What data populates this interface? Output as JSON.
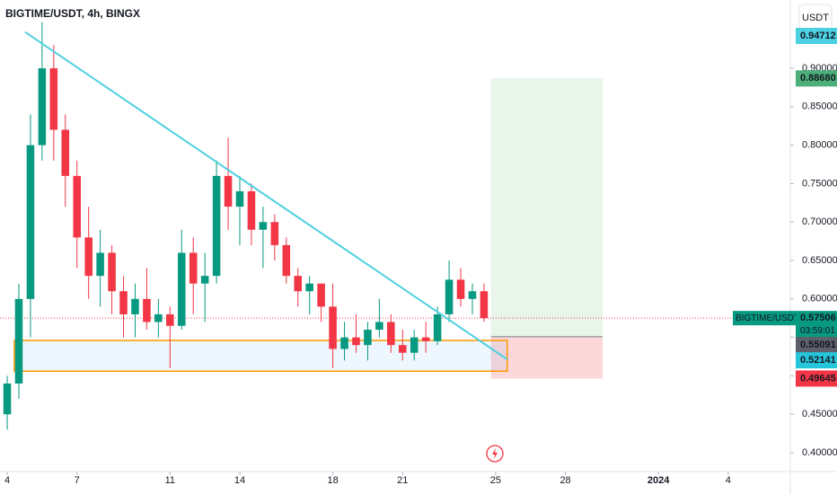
{
  "chart_data": {
    "type": "candlestick",
    "title": "BIGTIME/USDT, 4h, BINGX",
    "currency_button": "USDT",
    "up_color": "#089981",
    "down_color": "#f23645",
    "x": [
      0,
      0.5,
      1,
      1.5,
      2,
      2.5,
      3,
      3.5,
      4,
      4.5,
      5,
      5.5,
      6,
      6.5,
      7,
      7.5,
      8,
      8.5,
      9,
      9.5,
      10,
      10.5,
      11,
      11.5,
      12,
      12.5,
      13,
      13.5,
      14,
      14.5,
      15,
      15.5,
      16,
      16.5,
      17,
      17.5,
      18,
      18.5,
      19,
      19.5,
      20,
      20.5
    ],
    "open": [
      0.45,
      0.49,
      0.6,
      0.8,
      0.9,
      0.82,
      0.76,
      0.68,
      0.63,
      0.66,
      0.61,
      0.58,
      0.6,
      0.57,
      0.58,
      0.565,
      0.66,
      0.62,
      0.63,
      0.76,
      0.72,
      0.74,
      0.69,
      0.7,
      0.67,
      0.63,
      0.61,
      0.62,
      0.59,
      0.535,
      0.55,
      0.54,
      0.56,
      0.57,
      0.54,
      0.53,
      0.55,
      0.545,
      0.58,
      0.625,
      0.6,
      0.61
    ],
    "high": [
      0.5,
      0.62,
      0.84,
      0.96,
      0.93,
      0.84,
      0.78,
      0.72,
      0.69,
      0.67,
      0.63,
      0.62,
      0.64,
      0.6,
      0.59,
      0.69,
      0.68,
      0.66,
      0.78,
      0.81,
      0.76,
      0.75,
      0.72,
      0.71,
      0.68,
      0.64,
      0.63,
      0.62,
      0.62,
      0.57,
      0.58,
      0.57,
      0.6,
      0.58,
      0.56,
      0.56,
      0.57,
      0.59,
      0.65,
      0.64,
      0.62,
      0.62
    ],
    "low": [
      0.43,
      0.47,
      0.55,
      0.78,
      0.78,
      0.72,
      0.64,
      0.6,
      0.59,
      0.58,
      0.55,
      0.55,
      0.56,
      0.55,
      0.51,
      0.56,
      0.58,
      0.57,
      0.62,
      0.69,
      0.67,
      0.67,
      0.64,
      0.65,
      0.62,
      0.59,
      0.58,
      0.57,
      0.51,
      0.52,
      0.53,
      0.52,
      0.55,
      0.53,
      0.52,
      0.52,
      0.53,
      0.54,
      0.57,
      0.59,
      0.58,
      0.57
    ],
    "close": [
      0.49,
      0.6,
      0.8,
      0.9,
      0.82,
      0.76,
      0.68,
      0.63,
      0.66,
      0.61,
      0.58,
      0.6,
      0.57,
      0.58,
      0.565,
      0.66,
      0.62,
      0.63,
      0.76,
      0.72,
      0.74,
      0.69,
      0.7,
      0.67,
      0.63,
      0.61,
      0.62,
      0.59,
      0.535,
      0.55,
      0.54,
      0.56,
      0.57,
      0.54,
      0.53,
      0.55,
      0.545,
      0.58,
      0.625,
      0.6,
      0.61,
      0.575
    ],
    "xlim": [
      -0.31,
      33.67
    ],
    "ylim": [
      0.3755,
      0.9888
    ],
    "xticks": [
      {
        "value": 0,
        "label": "4"
      },
      {
        "value": 3,
        "label": "7"
      },
      {
        "value": 7,
        "label": "11"
      },
      {
        "value": 10,
        "label": "14"
      },
      {
        "value": 14,
        "label": "18"
      },
      {
        "value": 17,
        "label": "21"
      },
      {
        "value": 21,
        "label": "25"
      },
      {
        "value": 24,
        "label": "28"
      },
      {
        "value": 28,
        "label": "2024"
      },
      {
        "value": 31,
        "label": "4"
      }
    ],
    "yticks": [
      {
        "value": 0.4,
        "label": "0.40000"
      },
      {
        "value": 0.45,
        "label": "0.45000"
      },
      {
        "value": 0.5,
        "label": "0.50000"
      },
      {
        "value": 0.55,
        "label": "0.55000"
      },
      {
        "value": 0.6,
        "label": "0.60000"
      },
      {
        "value": 0.65,
        "label": "0.65000"
      },
      {
        "value": 0.7,
        "label": "0.70000"
      },
      {
        "value": 0.75,
        "label": "0.75000"
      },
      {
        "value": 0.8,
        "label": "0.80000"
      },
      {
        "value": 0.85,
        "label": "0.85000"
      },
      {
        "value": 0.9,
        "label": "0.90000"
      }
    ],
    "trendline": {
      "x": [
        0.77,
        21.5
      ],
      "values": [
        0.94712,
        0.52141
      ],
      "color": "#4dd0e1"
    },
    "zone": {
      "x": [
        0.3,
        21.5
      ],
      "values": [
        0.546,
        0.506
      ],
      "color": "#ff9800"
    },
    "position": {
      "x": [
        20.8,
        25.6
      ],
      "entry": 0.55091,
      "target": 0.8868,
      "stop": 0.49645
    },
    "current_price": {
      "name": "BIGTIME/USDT.PS",
      "value": 0.57506,
      "label": "0.57506",
      "countdown": "03:59:01",
      "color": "#089981"
    },
    "price_labels": [
      {
        "value": 0.94712,
        "label": "0.94712",
        "color": "#4dd0e1"
      },
      {
        "value": 0.8868,
        "label": "0.88680",
        "color": "#4caf7a"
      },
      {
        "value": 0.55091,
        "label": "0.55091",
        "color": "#5d606b"
      },
      {
        "value": 0.52141,
        "label": "0.52141",
        "color": "#26c6da"
      },
      {
        "value": 0.49645,
        "label": "0.49645",
        "color": "#f23645"
      }
    ]
  }
}
